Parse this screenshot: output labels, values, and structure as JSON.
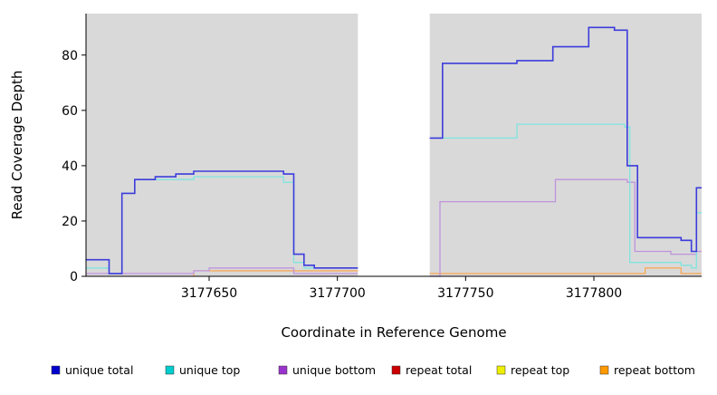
{
  "chart_data": {
    "type": "line",
    "step": true,
    "title": "",
    "xlabel": "Coordinate in Reference Genome",
    "ylabel": "Read Coverage Depth",
    "x_range": [
      3177602,
      3177842
    ],
    "y_range": [
      0,
      95
    ],
    "x_ticks": [
      3177650,
      3177700,
      3177750,
      3177800
    ],
    "y_ticks": [
      0,
      20,
      40,
      60,
      80
    ],
    "plot_background": "#d9d9d9",
    "gap_region": {
      "start": 3177708,
      "end": 3177736,
      "color": "#ffffff"
    },
    "legend_position": "bottom",
    "series": [
      {
        "id": "unique-total",
        "name": "unique total",
        "line_color": "#3c3cdc",
        "swatch_color": "#0000cd",
        "width": 1.6,
        "segments": [
          [
            [
              3177602,
              6
            ],
            [
              3177611,
              1
            ],
            [
              3177616,
              30
            ],
            [
              3177621,
              35
            ],
            [
              3177629,
              36
            ],
            [
              3177637,
              37
            ],
            [
              3177644,
              38
            ],
            [
              3177679,
              37
            ],
            [
              3177683,
              8
            ],
            [
              3177687,
              4
            ],
            [
              3177691,
              3
            ],
            [
              3177708,
              3
            ]
          ],
          [
            [
              3177736,
              50
            ],
            [
              3177741,
              77
            ],
            [
              3177770,
              78
            ],
            [
              3177784,
              83
            ],
            [
              3177798,
              90
            ],
            [
              3177808,
              89
            ],
            [
              3177813,
              40
            ],
            [
              3177817,
              14
            ],
            [
              3177834,
              13
            ],
            [
              3177838,
              9
            ],
            [
              3177840,
              32
            ],
            [
              3177842,
              32
            ]
          ]
        ]
      },
      {
        "id": "unique-top",
        "name": "unique top",
        "line_color": "#7fe5df",
        "swatch_color": "#00cdcd",
        "width": 1.3,
        "segments": [
          [
            [
              3177602,
              3
            ],
            [
              3177611,
              1
            ],
            [
              3177616,
              30
            ],
            [
              3177621,
              35
            ],
            [
              3177644,
              36
            ],
            [
              3177679,
              34
            ],
            [
              3177683,
              5
            ],
            [
              3177687,
              3
            ],
            [
              3177708,
              3
            ]
          ],
          [
            [
              3177736,
              50
            ],
            [
              3177770,
              55
            ],
            [
              3177812,
              54
            ],
            [
              3177814,
              5
            ],
            [
              3177834,
              4
            ],
            [
              3177838,
              3
            ],
            [
              3177840,
              23
            ],
            [
              3177842,
              23
            ]
          ]
        ]
      },
      {
        "id": "unique-bottom",
        "name": "unique bottom",
        "line_color": "#bf94dd",
        "swatch_color": "#9a32cd",
        "width": 1.3,
        "segments": [
          [
            [
              3177602,
              1
            ],
            [
              3177644,
              2
            ],
            [
              3177650,
              3
            ],
            [
              3177679,
              3
            ],
            [
              3177683,
              1
            ],
            [
              3177708,
              1
            ]
          ],
          [
            [
              3177736,
              0
            ],
            [
              3177740,
              27
            ],
            [
              3177785,
              35
            ],
            [
              3177813,
              34
            ],
            [
              3177816,
              9
            ],
            [
              3177830,
              8
            ],
            [
              3177838,
              8
            ],
            [
              3177840,
              9
            ],
            [
              3177842,
              9
            ]
          ]
        ]
      },
      {
        "id": "repeat-total",
        "name": "repeat total",
        "line_color": "#cc3333",
        "swatch_color": "#cd0000",
        "width": 1.1,
        "segments": [
          [
            [
              3177602,
              0
            ],
            [
              3177708,
              0
            ]
          ],
          [
            [
              3177736,
              0
            ],
            [
              3177842,
              0
            ]
          ]
        ]
      },
      {
        "id": "repeat-top",
        "name": "repeat top",
        "line_color": "#f0f000",
        "swatch_color": "#eeee00",
        "width": 1.1,
        "segments": [
          [
            [
              3177602,
              0
            ],
            [
              3177708,
              0
            ]
          ],
          [
            [
              3177736,
              0
            ],
            [
              3177842,
              0
            ]
          ]
        ]
      },
      {
        "id": "repeat-bottom",
        "name": "repeat bottom",
        "line_color": "#ffa040",
        "swatch_color": "#ff9900",
        "width": 1.1,
        "segments": [
          [
            [
              3177602,
              0
            ],
            [
              3177644,
              2
            ],
            [
              3177708,
              2
            ]
          ],
          [
            [
              3177736,
              1
            ],
            [
              3177817,
              1
            ],
            [
              3177820,
              3
            ],
            [
              3177834,
              1
            ],
            [
              3177842,
              1
            ]
          ]
        ]
      }
    ]
  }
}
